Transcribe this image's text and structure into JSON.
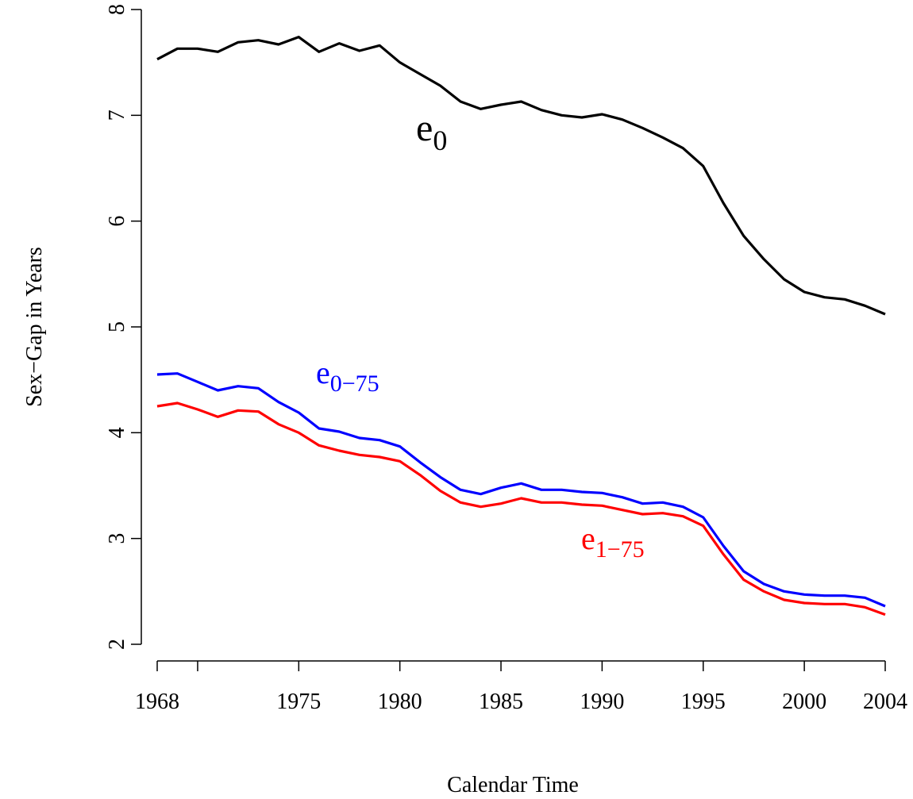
{
  "chart_data": {
    "type": "line",
    "x_label": "Calendar Time",
    "y_label": "Sex−Gap in Years",
    "x": [
      1968,
      1969,
      1970,
      1971,
      1972,
      1973,
      1974,
      1975,
      1976,
      1977,
      1978,
      1979,
      1980,
      1981,
      1982,
      1983,
      1984,
      1985,
      1986,
      1987,
      1988,
      1989,
      1990,
      1991,
      1992,
      1993,
      1994,
      1995,
      1996,
      1997,
      1998,
      1999,
      2000,
      2001,
      2002,
      2003,
      2004
    ],
    "series": [
      {
        "name": "e",
        "name_subscript": "0",
        "color": "#000000",
        "values": [
          7.53,
          7.63,
          7.63,
          7.6,
          7.69,
          7.71,
          7.67,
          7.74,
          7.6,
          7.68,
          7.61,
          7.66,
          7.5,
          7.39,
          7.28,
          7.13,
          7.06,
          7.1,
          7.13,
          7.05,
          7.0,
          6.98,
          7.01,
          6.96,
          6.88,
          6.79,
          6.69,
          6.52,
          6.17,
          5.86,
          5.64,
          5.45,
          5.33,
          5.28,
          5.26,
          5.2,
          5.12
        ]
      },
      {
        "name": "e",
        "name_subscript": "0−75",
        "color": "#0000ff",
        "values": [
          4.55,
          4.56,
          4.48,
          4.4,
          4.44,
          4.42,
          4.29,
          4.19,
          4.04,
          4.01,
          3.95,
          3.93,
          3.87,
          3.72,
          3.58,
          3.46,
          3.42,
          3.48,
          3.52,
          3.46,
          3.46,
          3.44,
          3.43,
          3.39,
          3.33,
          3.34,
          3.3,
          3.2,
          2.93,
          2.69,
          2.57,
          2.5,
          2.47,
          2.46,
          2.46,
          2.44,
          2.36
        ]
      },
      {
        "name": "e",
        "name_subscript": "1−75",
        "color": "#ff0000",
        "values": [
          4.25,
          4.28,
          4.22,
          4.15,
          4.21,
          4.2,
          4.08,
          4.0,
          3.88,
          3.83,
          3.79,
          3.77,
          3.73,
          3.6,
          3.45,
          3.34,
          3.3,
          3.33,
          3.38,
          3.34,
          3.34,
          3.32,
          3.31,
          3.27,
          3.23,
          3.24,
          3.21,
          3.12,
          2.85,
          2.61,
          2.5,
          2.42,
          2.39,
          2.38,
          2.38,
          2.35,
          2.28
        ]
      }
    ],
    "xlim": [
      1968,
      2004
    ],
    "xticks": [
      1968,
      {
        "value": 1970,
        "label": null
      },
      1975,
      1980,
      1985,
      1990,
      1995,
      2000,
      2004
    ],
    "ylim": [
      2,
      8
    ],
    "yticks": [
      2,
      3,
      4,
      5,
      6,
      7,
      8
    ],
    "grid": false
  }
}
